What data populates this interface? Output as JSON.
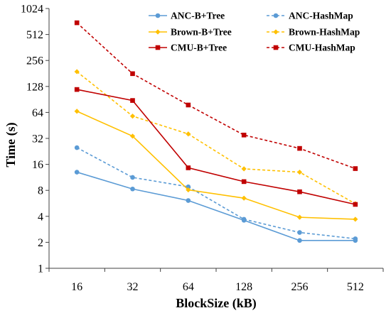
{
  "chart_data": {
    "type": "line",
    "title": "",
    "xlabel": "BlockSize (kB)",
    "ylabel": "Time (s)",
    "x_scale": "log2",
    "y_scale": "log2",
    "categories": [
      "16",
      "32",
      "64",
      "128",
      "256",
      "512"
    ],
    "yticks": [
      "1",
      "2",
      "4",
      "8",
      "16",
      "32",
      "64",
      "128",
      "256",
      "512",
      "1024"
    ],
    "ylim": [
      1,
      1024
    ],
    "grid": false,
    "legend_position": "top-right",
    "series": [
      {
        "name": "ANC-B+Tree",
        "color": "#5B9BD5",
        "dashed": false,
        "marker": "circle",
        "values": [
          13,
          8.3,
          6.1,
          3.6,
          2.1,
          2.1
        ]
      },
      {
        "name": "ANC-HashMap",
        "color": "#5B9BD5",
        "dashed": true,
        "marker": "circle",
        "values": [
          25,
          11.3,
          8.8,
          3.7,
          2.6,
          2.2
        ]
      },
      {
        "name": "Brown-B+Tree",
        "color": "#FFC000",
        "dashed": false,
        "marker": "diamond",
        "values": [
          66,
          34,
          8.1,
          6.5,
          3.9,
          3.7
        ]
      },
      {
        "name": "Brown-HashMap",
        "color": "#FFC000",
        "dashed": true,
        "marker": "diamond",
        "values": [
          190,
          58,
          36,
          14.2,
          13,
          5.6
        ]
      },
      {
        "name": "CMU-B+Tree",
        "color": "#C00000",
        "dashed": false,
        "marker": "square",
        "values": [
          118,
          88,
          14.6,
          10.1,
          7.7,
          5.5
        ]
      },
      {
        "name": "CMU-HashMap",
        "color": "#C00000",
        "dashed": true,
        "marker": "square",
        "values": [
          700,
          180,
          78,
          35,
          24.5,
          14.3
        ]
      }
    ]
  }
}
